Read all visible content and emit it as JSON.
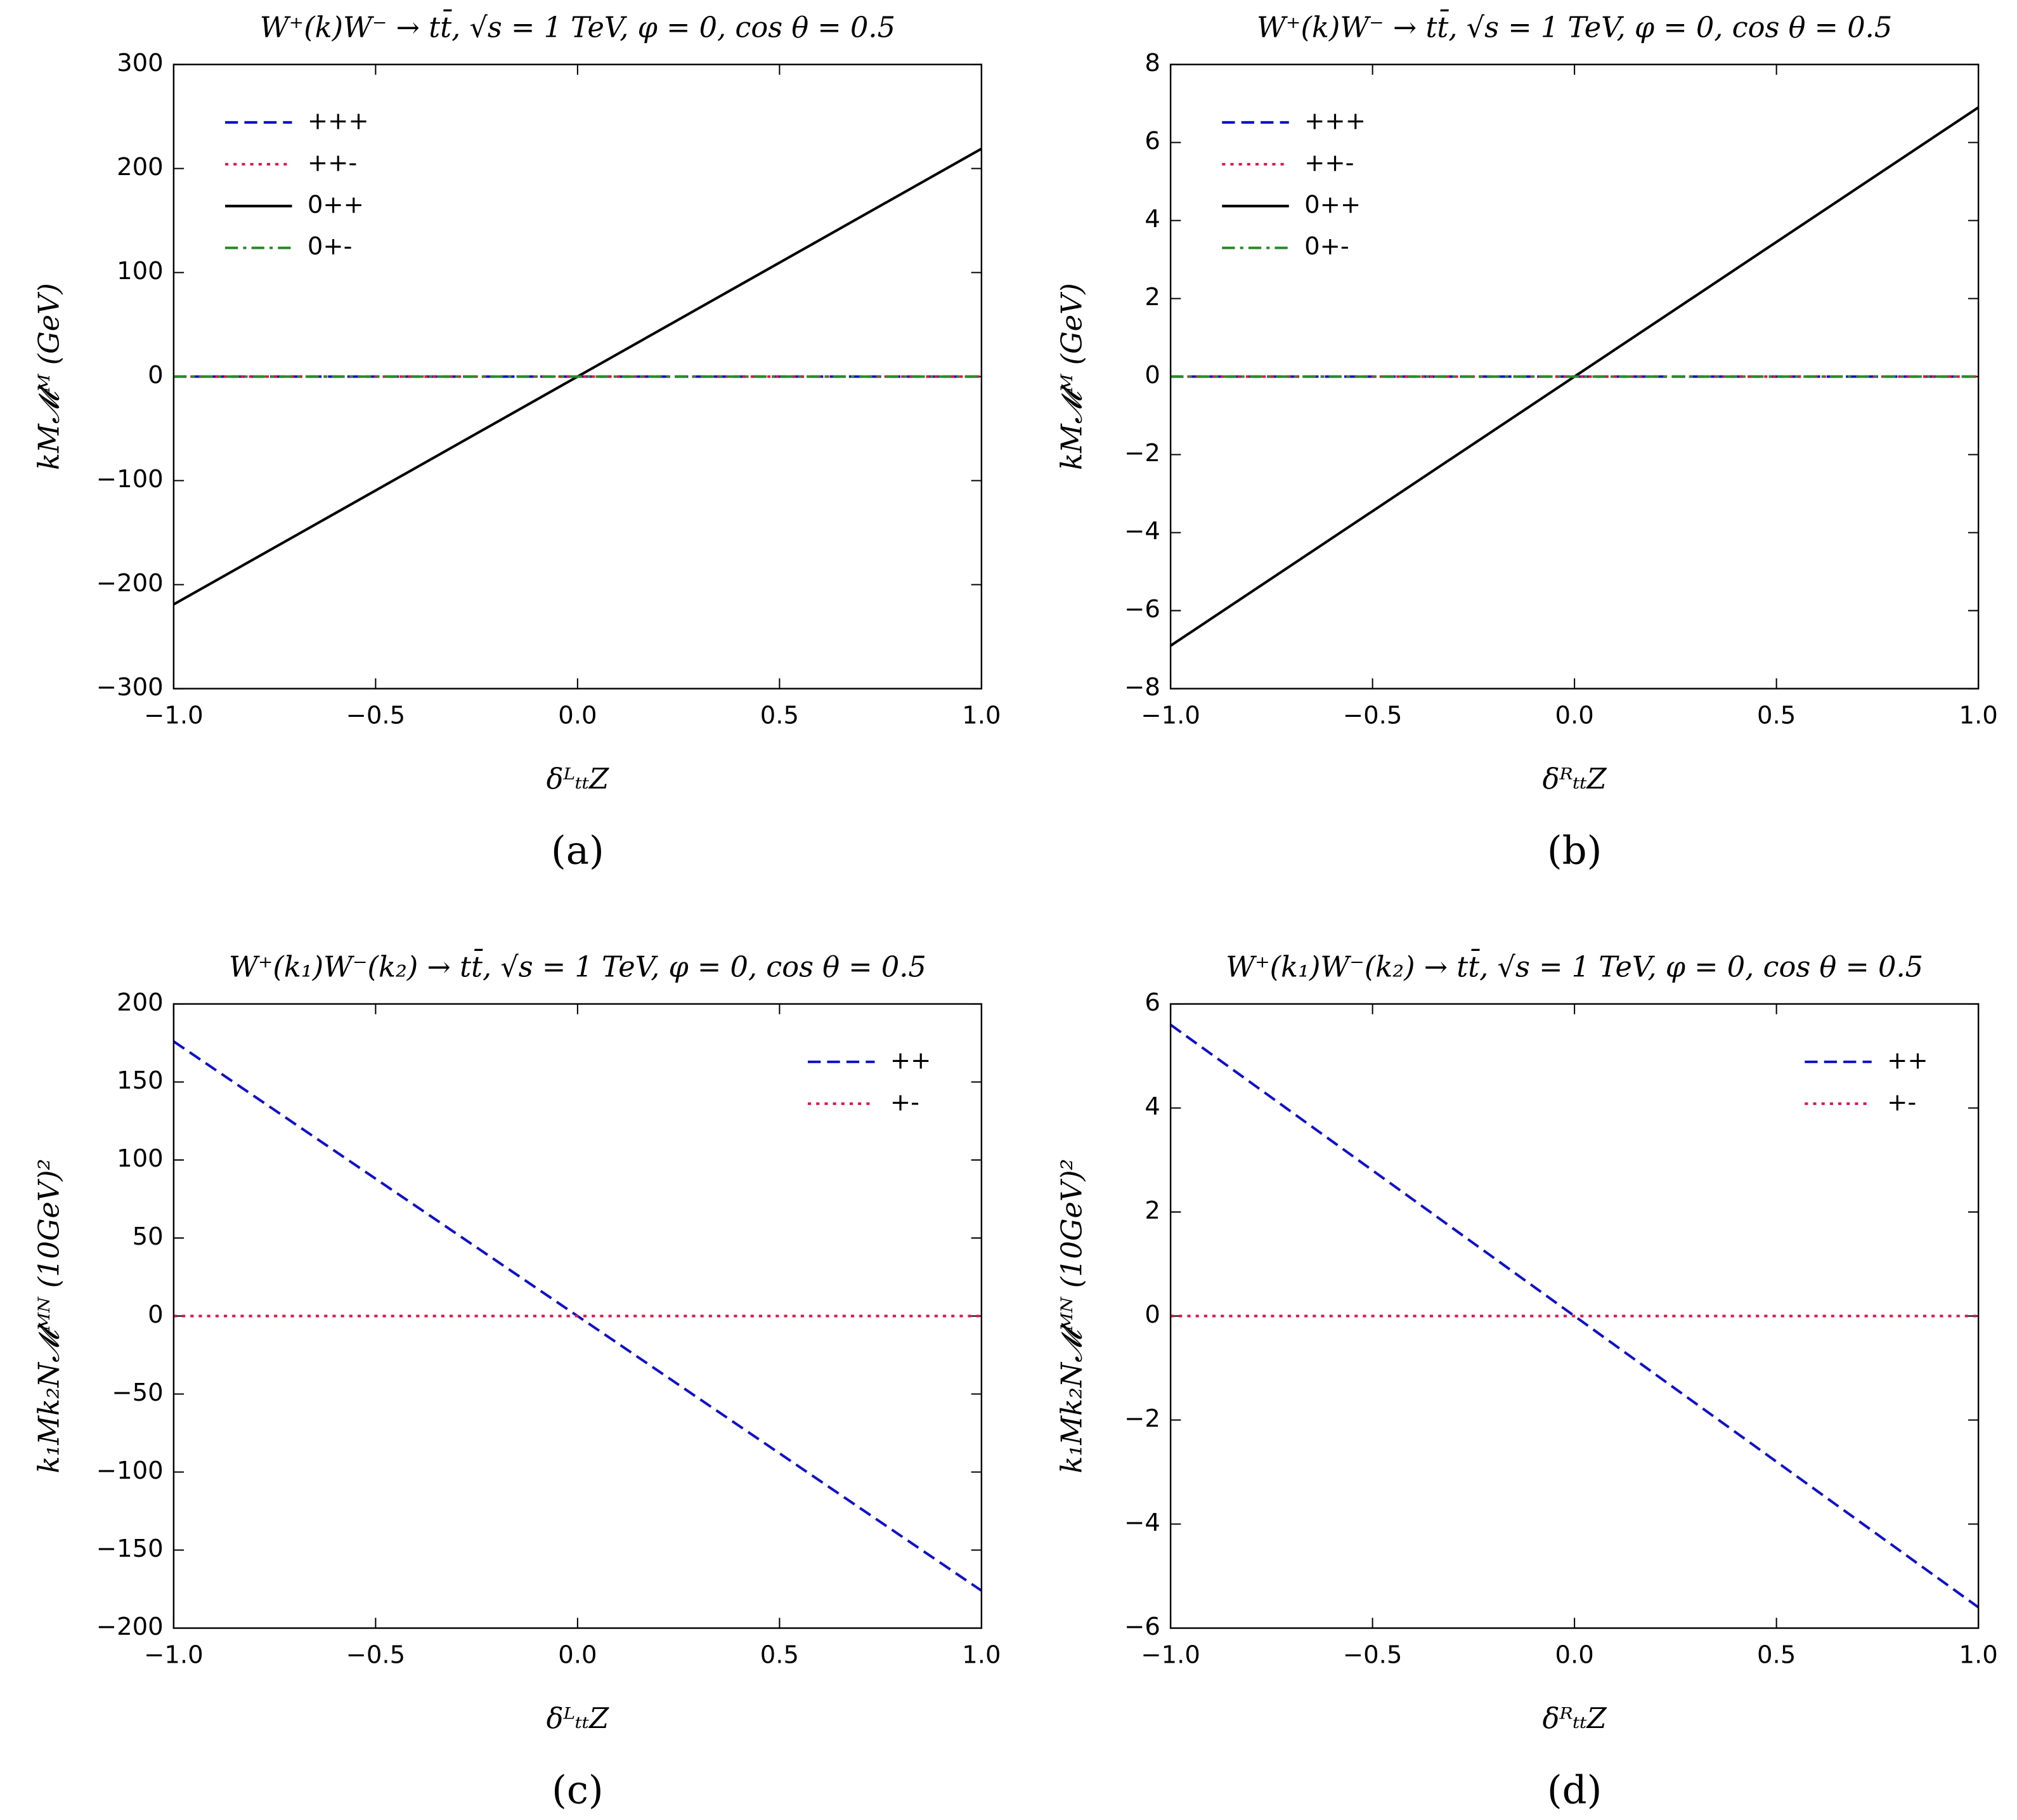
{
  "chart_data": [
    {
      "type": "line",
      "title": "W⁺(k)W⁻ → tt̄,  √s = 1 TeV,  φ = 0, cos θ = 0.5",
      "caption": "(a)",
      "xlabel": "δᴸₜₜ𝑍",
      "ylabel": "k𝑀𝓜ᴹ (GeV)",
      "legend": "upper left",
      "x": [
        -1,
        1
      ],
      "xlim": [
        -1,
        1
      ],
      "ylim": [
        -300,
        300
      ],
      "xticks": [
        {
          "value": -1,
          "label": "−1.0"
        },
        {
          "value": -0.5,
          "label": "−0.5"
        },
        {
          "value": 0,
          "label": "0.0"
        },
        0.5,
        {
          "value": 1,
          "label": "1.0"
        }
      ],
      "yticks": [
        {
          "value": -300,
          "label": "−300"
        },
        {
          "value": -200,
          "label": "−200"
        },
        {
          "value": -100,
          "label": "−100"
        },
        0,
        100,
        200,
        300
      ],
      "series": [
        {
          "name": "+++",
          "color": "#1010cc",
          "linestyle": "dashed",
          "values": [
            0,
            0
          ]
        },
        {
          "name": "++-",
          "color": "#e0144a",
          "linestyle": "dotted",
          "values": [
            0,
            0
          ]
        },
        {
          "name": "0++",
          "color": "#000000",
          "linestyle": "solid",
          "values": [
            -219,
            219
          ]
        },
        {
          "name": "0+-",
          "color": "#2a8a2a",
          "linestyle": "dashdot",
          "values": [
            0,
            0
          ]
        }
      ]
    },
    {
      "type": "line",
      "title": "W⁺(k)W⁻ → tt̄,  √s = 1 TeV,  φ = 0, cos θ = 0.5",
      "caption": "(b)",
      "xlabel": "δᴿₜₜ𝑍",
      "ylabel": "k𝑀𝓜ᴹ (GeV)",
      "legend": "upper left",
      "x": [
        -1,
        1
      ],
      "xlim": [
        -1,
        1
      ],
      "ylim": [
        -8,
        8
      ],
      "xticks": [
        {
          "value": -1,
          "label": "−1.0"
        },
        {
          "value": -0.5,
          "label": "−0.5"
        },
        {
          "value": 0,
          "label": "0.0"
        },
        0.5,
        {
          "value": 1,
          "label": "1.0"
        }
      ],
      "yticks": [
        {
          "value": -8,
          "label": "−8"
        },
        {
          "value": -6,
          "label": "−6"
        },
        {
          "value": -4,
          "label": "−4"
        },
        {
          "value": -2,
          "label": "−2"
        },
        0,
        2,
        4,
        6,
        8
      ],
      "series": [
        {
          "name": "+++",
          "color": "#1010cc",
          "linestyle": "dashed",
          "values": [
            0,
            0
          ]
        },
        {
          "name": "++-",
          "color": "#e0144a",
          "linestyle": "dotted",
          "values": [
            0,
            0
          ]
        },
        {
          "name": "0++",
          "color": "#000000",
          "linestyle": "solid",
          "values": [
            -6.9,
            6.9
          ]
        },
        {
          "name": "0+-",
          "color": "#2a8a2a",
          "linestyle": "dashdot",
          "values": [
            0,
            0
          ]
        }
      ]
    },
    {
      "type": "line",
      "title": "W⁺(k₁)W⁻(k₂) → tt̄,  √s = 1 TeV,  φ = 0, cos θ = 0.5",
      "caption": "(c)",
      "xlabel": "δᴸₜₜ𝑍",
      "ylabel": "k₁𝑀k₂𝑁𝓜ᴹᴺ (10GeV)²",
      "legend": "upper right",
      "x": [
        -1,
        1
      ],
      "xlim": [
        -1,
        1
      ],
      "ylim": [
        -200,
        200
      ],
      "xticks": [
        {
          "value": -1,
          "label": "−1.0"
        },
        {
          "value": -0.5,
          "label": "−0.5"
        },
        {
          "value": 0,
          "label": "0.0"
        },
        0.5,
        {
          "value": 1,
          "label": "1.0"
        }
      ],
      "yticks": [
        {
          "value": -200,
          "label": "−200"
        },
        {
          "value": -150,
          "label": "−150"
        },
        {
          "value": -100,
          "label": "−100"
        },
        {
          "value": -50,
          "label": "−50"
        },
        0,
        50,
        100,
        150,
        200
      ],
      "series": [
        {
          "name": "++",
          "color": "#1010cc",
          "linestyle": "dashed",
          "values": [
            176,
            -176
          ]
        },
        {
          "name": "+-",
          "color": "#e0144a",
          "linestyle": "dotted",
          "values": [
            0,
            0
          ]
        }
      ]
    },
    {
      "type": "line",
      "title": "W⁺(k₁)W⁻(k₂) → tt̄,  √s = 1 TeV,  φ = 0, cos θ = 0.5",
      "caption": "(d)",
      "xlabel": "δᴿₜₜ𝑍",
      "ylabel": "k₁𝑀k₂𝑁𝓜ᴹᴺ (10GeV)²",
      "legend": "upper right",
      "x": [
        -1,
        1
      ],
      "xlim": [
        -1,
        1
      ],
      "ylim": [
        -6,
        6
      ],
      "xticks": [
        {
          "value": -1,
          "label": "−1.0"
        },
        {
          "value": -0.5,
          "label": "−0.5"
        },
        {
          "value": 0,
          "label": "0.0"
        },
        0.5,
        {
          "value": 1,
          "label": "1.0"
        }
      ],
      "yticks": [
        {
          "value": -6,
          "label": "−6"
        },
        {
          "value": -4,
          "label": "−4"
        },
        {
          "value": -2,
          "label": "−2"
        },
        0,
        2,
        4,
        6
      ],
      "series": [
        {
          "name": "++",
          "color": "#1010cc",
          "linestyle": "dashed",
          "values": [
            5.6,
            -5.6
          ]
        },
        {
          "name": "+-",
          "color": "#e0144a",
          "linestyle": "dotted",
          "values": [
            0,
            0
          ]
        }
      ]
    }
  ]
}
